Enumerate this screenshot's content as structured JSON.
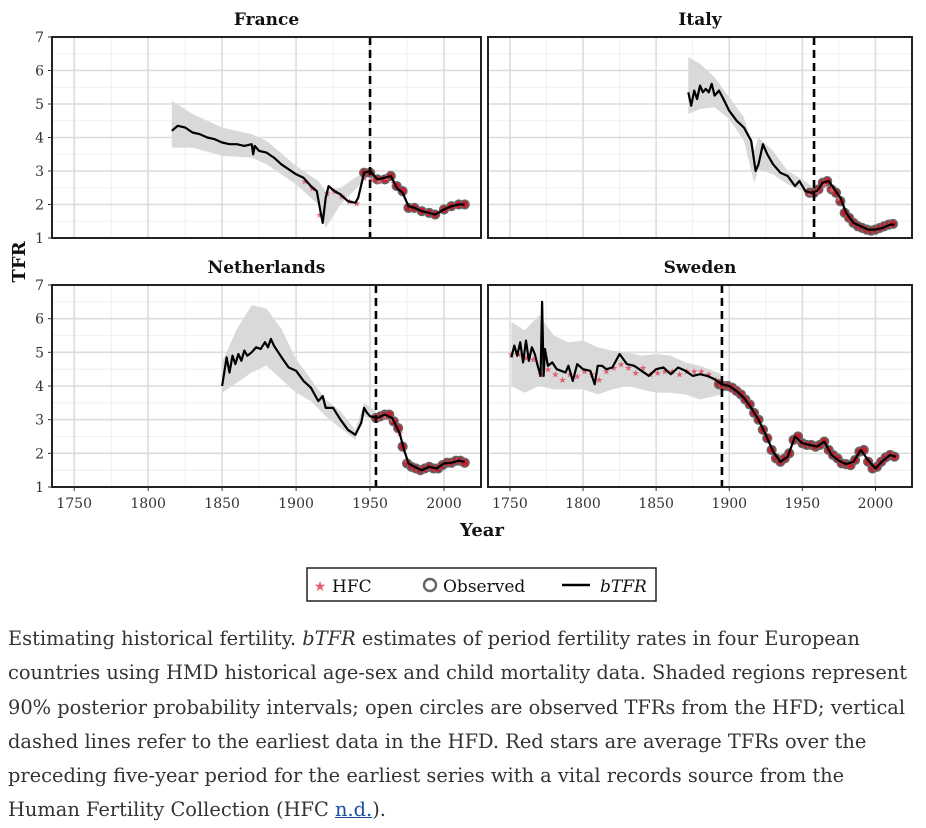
{
  "chart_data": {
    "type": "line",
    "ylabel": "TFR",
    "xlabel": "Year",
    "xlim": [
      1735,
      2025
    ],
    "ylim": [
      1,
      7
    ],
    "x_ticks": [
      1750,
      1800,
      1850,
      1900,
      1950,
      2000
    ],
    "y_ticks": [
      1,
      2,
      3,
      4,
      5,
      6,
      7
    ],
    "grid": true,
    "legend": {
      "position": "bottom",
      "entries": [
        {
          "label": "HFC",
          "marker": "star",
          "color": "#e06070"
        },
        {
          "label": "Observed",
          "marker": "open-circle",
          "color": "#666666"
        },
        {
          "label": "bTFR",
          "marker": "line",
          "color": "#000000"
        }
      ]
    },
    "colors": {
      "btfr": "#000000",
      "band": "#d9d9d9",
      "observed": "#666666",
      "hfc": "#e06070",
      "observed_fill": "#c81e2e"
    },
    "panels": [
      {
        "title": "France",
        "hfd_start_year": 1950,
        "btfr": {
          "x": [
            1816,
            1820,
            1825,
            1830,
            1835,
            1840,
            1845,
            1850,
            1855,
            1860,
            1865,
            1870,
            1871,
            1872,
            1875,
            1880,
            1885,
            1890,
            1895,
            1900,
            1905,
            1910,
            1914,
            1916,
            1918,
            1920,
            1922,
            1926,
            1930,
            1935,
            1940,
            1942,
            1946,
            1950,
            1955,
            1960,
            1964,
            1968,
            1972,
            1976,
            1980,
            1985,
            1990,
            1994,
            2000,
            2005,
            2010,
            2014
          ],
          "y": [
            4.2,
            4.35,
            4.3,
            4.15,
            4.1,
            4.0,
            3.95,
            3.85,
            3.8,
            3.8,
            3.75,
            3.8,
            3.5,
            3.75,
            3.6,
            3.55,
            3.4,
            3.2,
            3.05,
            2.9,
            2.8,
            2.55,
            2.4,
            1.9,
            1.45,
            2.2,
            2.55,
            2.4,
            2.3,
            2.1,
            2.05,
            2.2,
            2.95,
            3.0,
            2.75,
            2.8,
            2.85,
            2.5,
            2.35,
            1.95,
            1.9,
            1.8,
            1.75,
            1.7,
            1.85,
            1.95,
            2.0,
            2.0
          ]
        },
        "band": {
          "x": [
            1816,
            1830,
            1850,
            1870,
            1880,
            1900,
            1915,
            1920,
            1930,
            1950
          ],
          "lower": [
            3.7,
            3.7,
            3.45,
            3.4,
            3.2,
            2.6,
            2.0,
            1.3,
            2.0,
            2.9
          ],
          "upper": [
            5.1,
            4.7,
            4.3,
            4.1,
            3.9,
            3.15,
            2.7,
            2.4,
            2.5,
            3.1
          ]
        },
        "observed": {
          "x": [
            1946,
            1950,
            1955,
            1960,
            1964,
            1968,
            1972,
            1976,
            1980,
            1985,
            1990,
            1994,
            2000,
            2005,
            2010,
            2014
          ],
          "y": [
            2.95,
            2.95,
            2.75,
            2.75,
            2.85,
            2.55,
            2.4,
            1.9,
            1.9,
            1.8,
            1.75,
            1.7,
            1.85,
            1.95,
            2.0,
            2.0
          ]
        },
        "hfc": {
          "x": [
            1906,
            1911,
            1916,
            1921,
            1926,
            1931,
            1936,
            1941,
            1946,
            1951,
            1956,
            1961,
            1966
          ],
          "y": [
            2.7,
            2.5,
            1.7,
            2.35,
            2.4,
            2.25,
            2.1,
            2.05,
            2.8,
            2.75,
            2.7,
            2.8,
            2.65
          ]
        }
      },
      {
        "title": "Italy",
        "hfd_start_year": 1958,
        "btfr": {
          "x": [
            1872,
            1874,
            1876,
            1878,
            1880,
            1882,
            1884,
            1886,
            1888,
            1890,
            1893,
            1896,
            1900,
            1905,
            1910,
            1915,
            1918,
            1920,
            1923,
            1926,
            1930,
            1935,
            1940,
            1945,
            1948,
            1952,
            1956,
            1960,
            1964,
            1968,
            1972,
            1976,
            1980,
            1985,
            1990,
            1995,
            2000,
            2005,
            2010,
            2013
          ],
          "y": [
            5.35,
            4.95,
            5.4,
            5.15,
            5.55,
            5.35,
            5.45,
            5.35,
            5.6,
            5.25,
            5.4,
            5.15,
            4.8,
            4.5,
            4.3,
            3.9,
            3.0,
            3.2,
            3.8,
            3.5,
            3.2,
            2.95,
            2.85,
            2.55,
            2.7,
            2.4,
            2.35,
            2.4,
            2.65,
            2.7,
            2.45,
            2.2,
            1.75,
            1.45,
            1.35,
            1.25,
            1.25,
            1.3,
            1.4,
            1.4
          ]
        },
        "band": {
          "x": [
            1872,
            1880,
            1890,
            1900,
            1910,
            1917,
            1920,
            1930,
            1940,
            1950,
            1958
          ],
          "lower": [
            4.7,
            4.85,
            4.9,
            4.55,
            3.9,
            2.65,
            3.05,
            2.9,
            2.6,
            2.4,
            2.25
          ],
          "upper": [
            6.4,
            6.2,
            5.8,
            5.2,
            4.6,
            3.6,
            4.0,
            3.6,
            3.0,
            2.75,
            2.5
          ]
        },
        "observed": {
          "x": [
            1955,
            1958,
            1961,
            1964,
            1967,
            1970,
            1973,
            1976,
            1979,
            1982,
            1985,
            1988,
            1991,
            1994,
            1997,
            2000,
            2003,
            2006,
            2009,
            2012
          ],
          "y": [
            2.35,
            2.35,
            2.45,
            2.65,
            2.7,
            2.45,
            2.35,
            2.1,
            1.75,
            1.6,
            1.45,
            1.35,
            1.3,
            1.25,
            1.22,
            1.25,
            1.3,
            1.35,
            1.4,
            1.42
          ]
        },
        "hfc": {
          "x": [
            1955,
            1960,
            1965,
            1970,
            1975
          ],
          "y": [
            2.35,
            2.4,
            2.6,
            2.45,
            2.2
          ]
        }
      },
      {
        "title": "Netherlands",
        "hfd_start_year": 1954,
        "btfr": {
          "x": [
            1850,
            1853,
            1855,
            1857,
            1859,
            1861,
            1863,
            1865,
            1867,
            1870,
            1873,
            1876,
            1879,
            1881,
            1883,
            1885,
            1888,
            1891,
            1895,
            1900,
            1905,
            1910,
            1915,
            1918,
            1920,
            1925,
            1930,
            1935,
            1940,
            1944,
            1946,
            1948,
            1950,
            1955,
            1960,
            1965,
            1970,
            1973,
            1976,
            1980,
            1985,
            1990,
            1995,
            2000,
            2005,
            2010,
            2014
          ],
          "y": [
            4.0,
            4.85,
            4.4,
            4.9,
            4.65,
            4.95,
            4.75,
            5.05,
            4.9,
            5.0,
            5.15,
            5.1,
            5.3,
            5.15,
            5.4,
            5.2,
            5.0,
            4.8,
            4.55,
            4.45,
            4.15,
            3.95,
            3.55,
            3.7,
            3.35,
            3.35,
            3.0,
            2.7,
            2.55,
            2.9,
            3.35,
            3.2,
            3.1,
            3.05,
            3.15,
            3.05,
            2.6,
            2.1,
            1.7,
            1.6,
            1.5,
            1.6,
            1.55,
            1.7,
            1.72,
            1.78,
            1.75
          ]
        },
        "band": {
          "x": [
            1850,
            1860,
            1870,
            1880,
            1890,
            1900,
            1910,
            1920,
            1930,
            1940,
            1946,
            1954
          ],
          "lower": [
            3.8,
            4.1,
            4.4,
            4.6,
            4.2,
            3.8,
            3.55,
            3.1,
            2.75,
            2.4,
            3.1,
            2.95
          ],
          "upper": [
            4.7,
            5.7,
            6.4,
            6.3,
            5.7,
            4.8,
            4.2,
            3.6,
            3.25,
            2.7,
            3.5,
            3.25
          ]
        },
        "observed": {
          "x": [
            1954,
            1957,
            1960,
            1963,
            1966,
            1969,
            1972,
            1975,
            1978,
            1981,
            1984,
            1987,
            1990,
            1993,
            1996,
            1999,
            2002,
            2005,
            2008,
            2011,
            2014
          ],
          "y": [
            3.05,
            3.1,
            3.15,
            3.15,
            2.95,
            2.75,
            2.2,
            1.7,
            1.6,
            1.55,
            1.5,
            1.55,
            1.6,
            1.55,
            1.55,
            1.65,
            1.72,
            1.72,
            1.78,
            1.78,
            1.72
          ]
        },
        "hfc": {
          "x": [
            1955,
            1960,
            1965,
            1970,
            1975
          ],
          "y": [
            3.05,
            3.1,
            3.0,
            2.6,
            1.8
          ]
        }
      },
      {
        "title": "Sweden",
        "hfd_start_year": 1895,
        "btfr": {
          "x": [
            1751,
            1753,
            1755,
            1757,
            1759,
            1761,
            1763,
            1765,
            1767,
            1769,
            1771,
            1772,
            1773,
            1774,
            1776,
            1779,
            1782,
            1785,
            1788,
            1790,
            1793,
            1796,
            1800,
            1805,
            1808,
            1810,
            1813,
            1816,
            1820,
            1825,
            1830,
            1835,
            1840,
            1845,
            1850,
            1855,
            1860,
            1865,
            1870,
            1875,
            1880,
            1885,
            1890,
            1895,
            1900,
            1905,
            1910,
            1915,
            1920,
            1925,
            1930,
            1935,
            1940,
            1945,
            1950,
            1955,
            1960,
            1965,
            1970,
            1975,
            1980,
            1985,
            1990,
            1995,
            2000,
            2005,
            2010,
            2014
          ],
          "y": [
            4.85,
            5.2,
            4.9,
            5.3,
            4.7,
            5.35,
            4.75,
            5.15,
            4.95,
            4.6,
            4.3,
            6.5,
            4.3,
            5.1,
            4.6,
            4.7,
            4.5,
            4.45,
            4.4,
            4.6,
            4.15,
            4.65,
            4.5,
            4.45,
            4.05,
            4.6,
            4.6,
            4.5,
            4.55,
            4.95,
            4.65,
            4.6,
            4.45,
            4.3,
            4.5,
            4.55,
            4.35,
            4.55,
            4.45,
            4.3,
            4.35,
            4.3,
            4.2,
            4.05,
            4.0,
            3.85,
            3.65,
            3.35,
            3.0,
            2.55,
            2.05,
            1.75,
            1.9,
            2.5,
            2.3,
            2.25,
            2.2,
            2.35,
            1.95,
            1.78,
            1.68,
            1.75,
            2.1,
            1.8,
            1.55,
            1.78,
            1.95,
            1.9
          ]
        },
        "band": {
          "x": [
            1751,
            1760,
            1770,
            1780,
            1790,
            1800,
            1810,
            1820,
            1830,
            1840,
            1850,
            1860,
            1870,
            1880,
            1895
          ],
          "lower": [
            4.0,
            3.8,
            4.0,
            3.9,
            3.9,
            3.9,
            3.75,
            3.9,
            4.0,
            3.9,
            3.8,
            3.8,
            3.75,
            3.6,
            3.75
          ],
          "upper": [
            5.9,
            5.65,
            6.1,
            5.5,
            5.3,
            5.35,
            5.15,
            5.05,
            5.0,
            4.9,
            4.95,
            4.9,
            4.7,
            4.6,
            4.35
          ]
        },
        "observed": {
          "x": [
            1893,
            1896,
            1899,
            1902,
            1905,
            1908,
            1911,
            1914,
            1917,
            1920,
            1923,
            1926,
            1929,
            1932,
            1935,
            1938,
            1941,
            1944,
            1947,
            1950,
            1953,
            1956,
            1959,
            1962,
            1965,
            1968,
            1971,
            1974,
            1977,
            1980,
            1983,
            1986,
            1989,
            1992,
            1995,
            1998,
            2001,
            2004,
            2007,
            2010,
            2013
          ],
          "y": [
            4.05,
            4.0,
            4.0,
            3.95,
            3.85,
            3.75,
            3.6,
            3.45,
            3.2,
            3.0,
            2.7,
            2.45,
            2.1,
            1.85,
            1.75,
            1.85,
            2.0,
            2.4,
            2.5,
            2.3,
            2.25,
            2.25,
            2.2,
            2.25,
            2.35,
            2.1,
            1.95,
            1.85,
            1.7,
            1.68,
            1.65,
            1.8,
            2.05,
            2.1,
            1.75,
            1.55,
            1.6,
            1.75,
            1.88,
            1.95,
            1.9
          ]
        },
        "hfc": {
          "x": [
            1751,
            1756,
            1761,
            1766,
            1771,
            1776,
            1781,
            1786,
            1791,
            1796,
            1801,
            1806,
            1811,
            1816,
            1821,
            1826,
            1831,
            1836,
            1841,
            1846,
            1851,
            1856,
            1861,
            1866,
            1871,
            1876,
            1881,
            1886,
            1891
          ],
          "y": [
            4.95,
            4.95,
            4.85,
            4.8,
            4.35,
            4.5,
            4.35,
            4.2,
            4.35,
            4.3,
            4.45,
            4.35,
            4.2,
            4.45,
            4.55,
            4.65,
            4.55,
            4.4,
            4.55,
            4.35,
            4.4,
            4.45,
            4.45,
            4.35,
            4.45,
            4.45,
            4.45,
            4.35,
            4.2
          ]
        }
      }
    ]
  },
  "caption": {
    "lead": "Estimating historical fertility. ",
    "btfr_term": "bTFR",
    "body": " estimates of period fertility rates in four European countries using HMD historical age-sex and child mortality data. Shaded regions represent 90% posterior probability intervals; open circles are observed TFRs from the HFD; vertical dashed lines refer to the earliest data in the HFD. Red stars are average TFRs over the preceding five-year period for the earliest series with a vital records source from the Human Fertility Collection (HFC ",
    "link_text": "n.d.",
    "tail": ")."
  }
}
